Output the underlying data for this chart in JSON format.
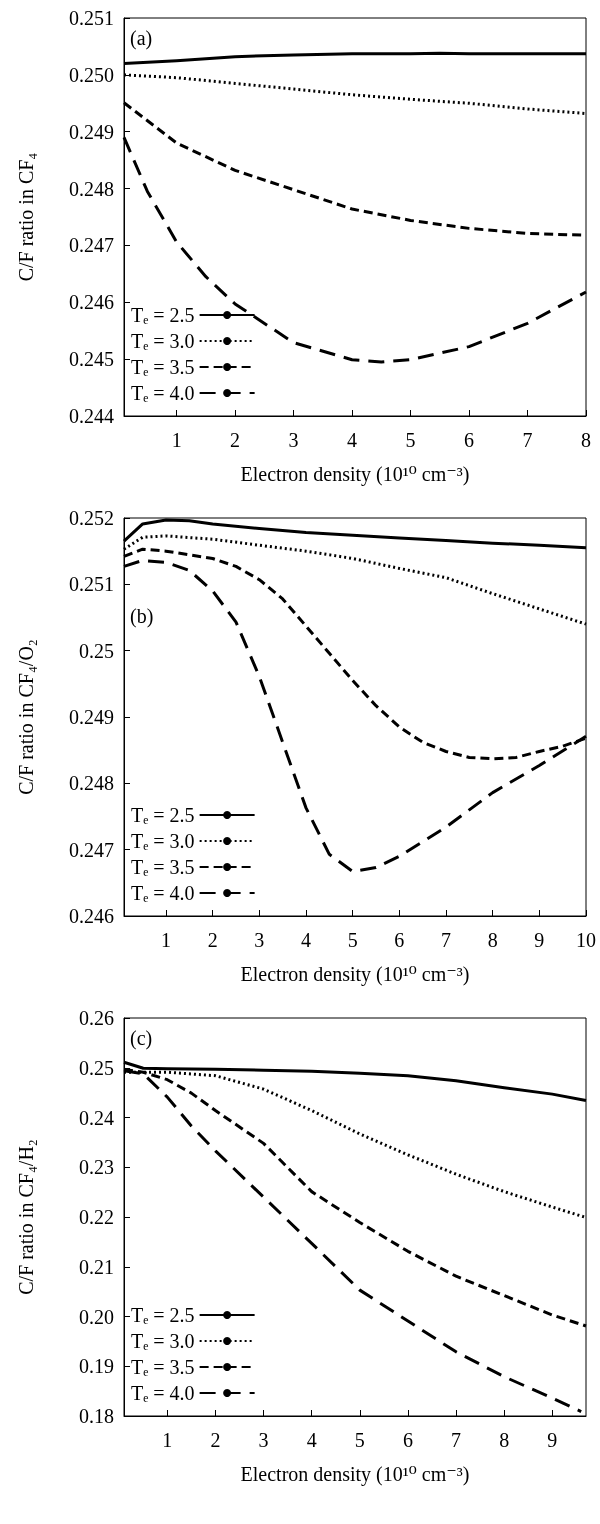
{
  "chart_data": [
    {
      "type": "line",
      "annotations": [
        "(a)"
      ],
      "xlabel": "Electron density (10¹⁰ cm⁻³)",
      "ylabel": "C/F ratio in CF₄",
      "xlim": [
        0.1,
        8
      ],
      "xticks": [
        1,
        2,
        3,
        4,
        5,
        6,
        7,
        8
      ],
      "ylim": [
        0.244,
        0.251
      ],
      "yticks": [
        0.244,
        0.245,
        0.246,
        0.247,
        0.248,
        0.249,
        {
          "value": 0.25,
          "label": "0.250"
        },
        0.251
      ],
      "grid": false,
      "legend": "bottom left",
      "marker": "none",
      "series": [
        {
          "name": "Tₑ = 2.5",
          "color": "#000000",
          "line_style": "solid",
          "x": [
            0.1,
            1,
            2,
            3,
            4,
            5,
            5.5,
            6,
            7,
            8
          ],
          "values": [
            0.2502,
            0.25025,
            0.25032,
            0.25035,
            0.25037,
            0.25037,
            0.25038,
            0.25037,
            0.25037,
            0.25037
          ]
        },
        {
          "name": "Tₑ = 3.0",
          "color": "#000000",
          "line_style": "dotted",
          "x": [
            0.1,
            1,
            2,
            3,
            4,
            5,
            6,
            7,
            8
          ],
          "values": [
            0.25,
            0.24995,
            0.24985,
            0.24975,
            0.24965,
            0.24957,
            0.2495,
            0.2494,
            0.24932
          ]
        },
        {
          "name": "Tₑ = 3.5",
          "color": "#000000",
          "line_style": "dashed",
          "x": [
            0.1,
            1,
            2,
            3,
            4,
            5,
            6,
            7,
            8
          ],
          "values": [
            0.24951,
            0.2488,
            0.24832,
            0.24798,
            0.24764,
            0.24744,
            0.2473,
            0.24721,
            0.24718
          ]
        },
        {
          "name": "Tₑ = 4.0",
          "color": "#000000",
          "line_style": "dashed",
          "x": [
            0.1,
            0.5,
            1,
            1.5,
            2,
            3,
            4,
            4.5,
            5,
            6,
            7,
            8
          ],
          "values": [
            0.2489,
            0.24795,
            0.24706,
            0.24645,
            0.24597,
            0.24529,
            0.24499,
            0.24495,
            0.24499,
            0.24522,
            0.24563,
            0.24618
          ]
        }
      ]
    },
    {
      "type": "line",
      "annotations": [
        "(b)"
      ],
      "xlabel": "Electron density (10¹⁰ cm⁻³)",
      "ylabel": "C/F ratio in CF₄/O₂",
      "xlim": [
        0.1,
        10
      ],
      "xticks": [
        1,
        2,
        3,
        4,
        5,
        6,
        7,
        8,
        9,
        10
      ],
      "ylim": [
        0.246,
        0.252
      ],
      "yticks": [
        0.246,
        0.247,
        0.248,
        0.249,
        0.25,
        0.251,
        0.252
      ],
      "grid": false,
      "legend": "bottom left",
      "marker": "none",
      "series": [
        {
          "name": "Tₑ = 2.5",
          "color": "#000000",
          "line_style": "solid",
          "x": [
            0.1,
            0.5,
            1,
            1.5,
            2,
            3,
            4,
            5,
            6,
            7,
            8,
            9,
            10
          ],
          "values": [
            0.25165,
            0.25191,
            0.25197,
            0.25196,
            0.25191,
            0.25184,
            0.25178,
            0.25174,
            0.2517,
            0.25166,
            0.25162,
            0.25159,
            0.25155
          ]
        },
        {
          "name": "Tₑ = 3.0",
          "color": "#000000",
          "line_style": "dotted",
          "x": [
            0.1,
            0.5,
            1,
            2,
            3,
            4,
            5,
            6,
            7,
            8,
            9,
            10
          ],
          "values": [
            0.25153,
            0.25171,
            0.25173,
            0.25168,
            0.25159,
            0.2515,
            0.25139,
            0.25124,
            0.2511,
            0.25086,
            0.25063,
            0.2504
          ]
        },
        {
          "name": "Tₑ = 3.5",
          "color": "#000000",
          "line_style": "dashed",
          "x": [
            0.1,
            0.5,
            1,
            2,
            2.5,
            3,
            3.5,
            4,
            4.5,
            5,
            5.5,
            6,
            6.5,
            7,
            7.5,
            8,
            8.5,
            9,
            9.5,
            10
          ],
          "values": [
            0.25142,
            0.25153,
            0.2515,
            0.25139,
            0.25127,
            0.25107,
            0.25078,
            0.25037,
            0.24996,
            0.24955,
            0.24917,
            0.24885,
            0.24862,
            0.24848,
            0.24839,
            0.24837,
            0.24839,
            0.24848,
            0.24856,
            0.24868
          ]
        },
        {
          "name": "Tₑ = 4.0",
          "color": "#000000",
          "line_style": "dashed",
          "x": [
            0.1,
            0.5,
            1,
            1.5,
            2,
            2.5,
            3,
            3.5,
            4,
            4.5,
            5,
            5.5,
            6,
            7,
            8,
            9,
            10
          ],
          "values": [
            0.25127,
            0.25136,
            0.25133,
            0.25121,
            0.2509,
            0.25043,
            0.24961,
            0.24862,
            0.24763,
            0.24693,
            0.24667,
            0.24673,
            0.2469,
            0.24734,
            0.24786,
            0.24827,
            0.24871
          ]
        }
      ]
    },
    {
      "type": "line",
      "annotations": [
        "(c)"
      ],
      "xlabel": "Electron density (10¹⁰ cm⁻³)",
      "ylabel": "C/F ratio in CF₄/H₂",
      "xlim": [
        0.1,
        9.7
      ],
      "xticks": [
        1,
        2,
        3,
        4,
        5,
        6,
        7,
        8,
        9
      ],
      "ylim": [
        0.18,
        0.26
      ],
      "yticks": [
        0.18,
        0.19,
        {
          "value": 0.2,
          "label": "0.20"
        },
        0.21,
        0.22,
        0.23,
        0.24,
        0.25,
        0.26
      ],
      "grid": false,
      "legend": "bottom left",
      "marker": "none",
      "series": [
        {
          "name": "Tₑ = 2.5",
          "color": "#000000",
          "line_style": "solid",
          "x": [
            0.1,
            0.5,
            1,
            2,
            3,
            4,
            5,
            6,
            7,
            8,
            9,
            9.7
          ],
          "values": [
            0.2511,
            0.2499,
            0.2498,
            0.2497,
            0.2495,
            0.2493,
            0.2489,
            0.2484,
            0.2474,
            0.246,
            0.2447,
            0.2434
          ]
        },
        {
          "name": "Tₑ = 3.0",
          "color": "#000000",
          "line_style": "dotted",
          "x": [
            0.1,
            1,
            2,
            3,
            4,
            5,
            6,
            7,
            8,
            9,
            9.7
          ],
          "values": [
            0.2491,
            0.2491,
            0.2484,
            0.2457,
            0.2414,
            0.2367,
            0.2325,
            0.2286,
            0.2251,
            0.222,
            0.2199
          ]
        },
        {
          "name": "Tₑ = 3.5",
          "color": "#000000",
          "line_style": "dashed",
          "x": [
            0.1,
            0.5,
            1,
            1.5,
            2,
            3,
            4,
            5,
            6,
            7,
            8,
            9,
            9.7
          ],
          "values": [
            0.2497,
            0.2491,
            0.2476,
            0.2449,
            0.2414,
            0.2348,
            0.2251,
            0.2189,
            0.2131,
            0.2081,
            0.2042,
            0.2003,
            0.1981
          ]
        },
        {
          "name": "Tₑ = 4.0",
          "color": "#000000",
          "line_style": "dashed",
          "x": [
            0.1,
            0.5,
            1,
            1.5,
            2,
            3,
            4,
            5,
            6,
            7,
            8,
            9,
            9.6
          ],
          "values": [
            0.2494,
            0.2488,
            0.2441,
            0.2383,
            0.2333,
            0.224,
            0.2147,
            0.2053,
            0.1991,
            0.1929,
            0.1879,
            0.1836,
            0.1809
          ]
        }
      ]
    }
  ]
}
